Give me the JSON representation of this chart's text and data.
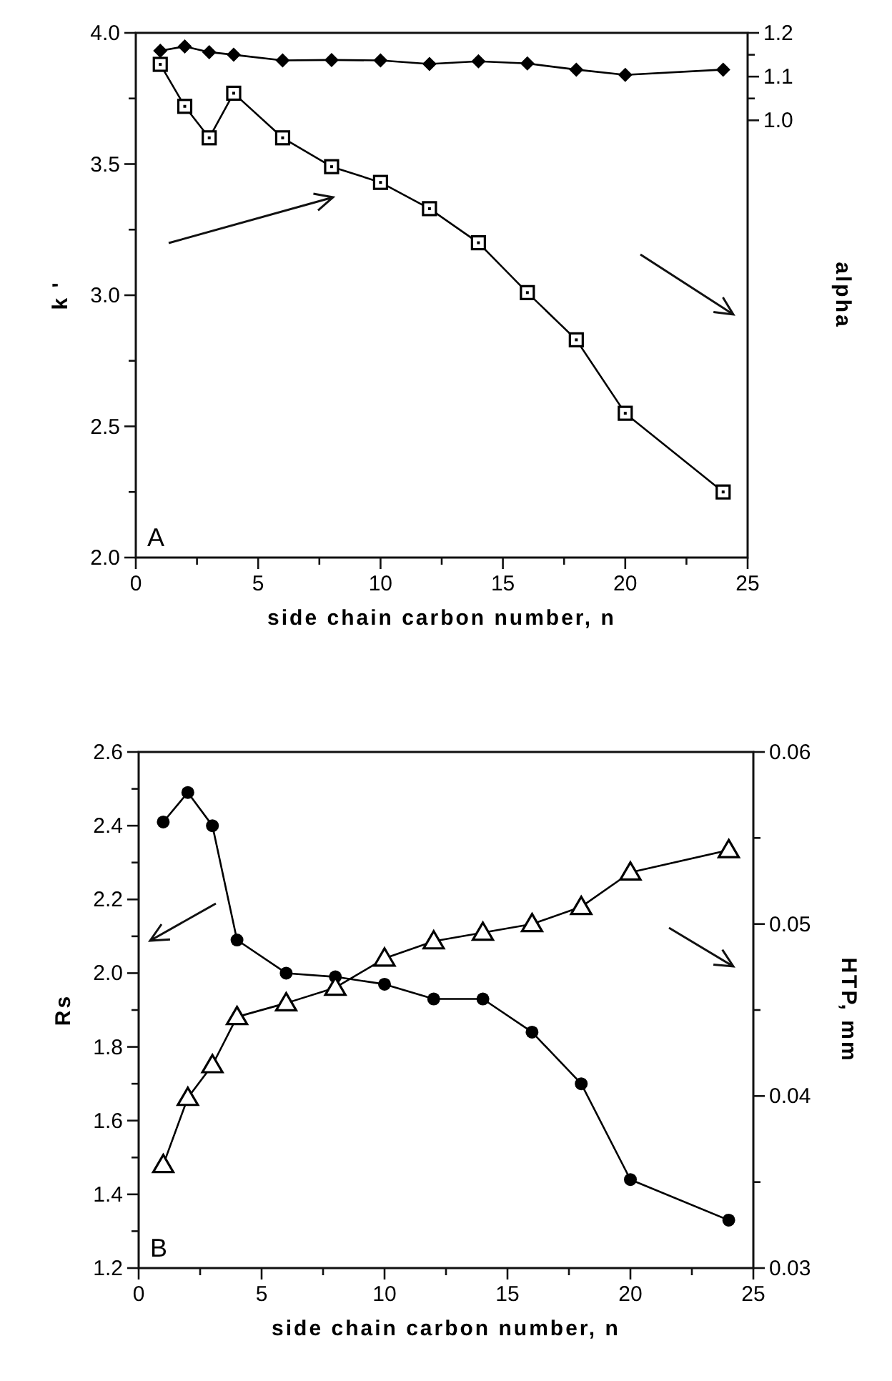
{
  "chart_data": [
    {
      "type": "line",
      "xlabel": "side chain carbon number, n",
      "ylabel": "k '",
      "y2label": "alpha",
      "annotations": [
        "A"
      ],
      "xlim": [
        0,
        25
      ],
      "xticks": [
        0,
        {
          "value": 2.5,
          "label": null
        },
        5,
        {
          "value": 7.5,
          "label": null
        },
        10,
        {
          "value": 12.5,
          "label": null
        },
        15,
        {
          "value": 17.5,
          "label": null
        },
        20,
        {
          "value": 22.5,
          "label": null
        },
        25
      ],
      "ylim": [
        2,
        4
      ],
      "yticks": [
        {
          "value": 2,
          "label": "2.0"
        },
        {
          "value": 2.25,
          "label": null
        },
        2.5,
        {
          "value": 2.75,
          "label": null
        },
        {
          "value": 3,
          "label": "3.0"
        },
        {
          "value": 3.25,
          "label": null
        },
        3.5,
        {
          "value": 3.75,
          "label": null
        },
        {
          "value": 4,
          "label": "4.0"
        }
      ],
      "y2lim": [
        0,
        1.2
      ],
      "y2ticks": [
        {
          "value": 1.0,
          "label": "1.0"
        },
        {
          "value": 1.05,
          "label": null
        },
        {
          "value": 1.1,
          "label": "1.1"
        },
        {
          "value": 1.15,
          "label": null
        },
        {
          "value": 1.2,
          "label": "1.2"
        }
      ],
      "x": [
        1,
        2,
        3,
        4,
        6,
        8,
        10,
        12,
        14,
        16,
        18,
        20,
        24
      ],
      "grid": false,
      "series": [
        {
          "color": "#000000",
          "marker": "diamond",
          "axis": "y2",
          "values": [
            1.159,
            1.169,
            1.156,
            1.15,
            1.137,
            1.138,
            1.137,
            1.129,
            1.135,
            1.13,
            1.116,
            1.104,
            1.116
          ]
        },
        {
          "color": "#000000",
          "marker": "square",
          "values": [
            3.88,
            3.72,
            3.6,
            3.77,
            3.6,
            3.49,
            3.43,
            3.33,
            3.2,
            3.01,
            2.83,
            2.55,
            2.25
          ]
        }
      ]
    },
    {
      "type": "line",
      "xlabel": "side chain carbon number, n",
      "ylabel": "Rs",
      "y2label": "HTP, mm",
      "annotations": [
        "B"
      ],
      "xlim": [
        0,
        25
      ],
      "xticks": [
        0,
        {
          "value": 2.5,
          "label": null
        },
        5,
        {
          "value": 7.5,
          "label": null
        },
        10,
        {
          "value": 12.5,
          "label": null
        },
        15,
        {
          "value": 17.5,
          "label": null
        },
        20,
        {
          "value": 22.5,
          "label": null
        },
        25
      ],
      "ylim": [
        1.2,
        2.6
      ],
      "yticks": [
        1.2,
        {
          "value": 1.3,
          "label": null
        },
        1.4,
        {
          "value": 1.5,
          "label": null
        },
        1.6,
        {
          "value": 1.7,
          "label": null
        },
        1.8,
        {
          "value": 1.9,
          "label": null
        },
        {
          "value": 2,
          "label": "2.0"
        },
        {
          "value": 2.1,
          "label": null
        },
        2.2,
        {
          "value": 2.3,
          "label": null
        },
        2.4,
        {
          "value": 2.5,
          "label": null
        },
        2.6
      ],
      "y2lim": [
        0.03,
        0.06
      ],
      "y2ticks": [
        0.03,
        {
          "value": 0.035,
          "label": null
        },
        0.04,
        {
          "value": 0.045,
          "label": null
        },
        0.05,
        {
          "value": 0.055,
          "label": null
        },
        0.06
      ],
      "x": [
        1,
        2,
        3,
        4,
        6,
        8,
        10,
        12,
        14,
        16,
        18,
        20,
        24
      ],
      "grid": false,
      "series": [
        {
          "color": "#000000",
          "marker": "circle",
          "values": [
            2.41,
            2.49,
            2.4,
            2.09,
            2.0,
            1.99,
            1.97,
            1.93,
            1.93,
            1.84,
            1.7,
            1.44,
            1.33
          ]
        },
        {
          "color": "#000000",
          "marker": "triangle",
          "axis": "y2",
          "values": [
            0.036,
            0.0399,
            0.0418,
            0.0446,
            0.0454,
            0.0463,
            0.048,
            0.049,
            0.0495,
            0.05,
            0.051,
            0.053,
            0.0543
          ]
        }
      ]
    }
  ]
}
